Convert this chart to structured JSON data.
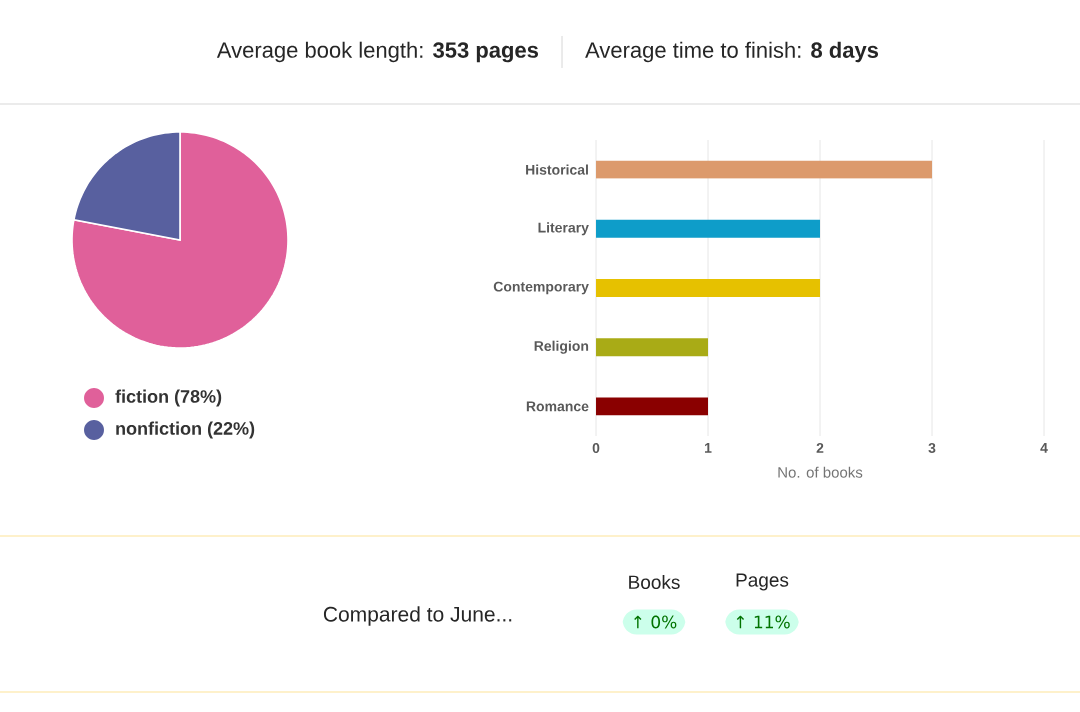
{
  "chart_data": [
    {
      "type": "other",
      "annotations": [
        "Average book length: **353 pages**",
        "Average time to finish: **8 days**"
      ]
    },
    {
      "type": "pie",
      "categories": [
        "fiction (78%)",
        "nonfiction (22%)"
      ],
      "values": [
        78,
        22
      ],
      "colors": [
        "#e0609a",
        "#58609f"
      ],
      "legend": "bottom"
    },
    {
      "type": "bar",
      "orientation": "horizontal",
      "categories": [
        "Historical",
        "Literary",
        "Contemporary",
        "Religion",
        "Romance"
      ],
      "values": [
        3,
        2,
        2,
        1,
        1
      ],
      "colors": [
        "#dc9a6c",
        "#0e9dc9",
        "#e6c100",
        "#a9ab16",
        "#8a0000"
      ],
      "xlim": [
        0,
        4
      ],
      "xticks": [
        0,
        1,
        2,
        3,
        4
      ],
      "xlabel": "No. of books",
      "grid": "x"
    },
    {
      "type": "other",
      "annotations": [
        "Compared to June...",
        "Books",
        "↑ 0%",
        "Pages",
        "↑ 11%"
      ]
    }
  ]
}
